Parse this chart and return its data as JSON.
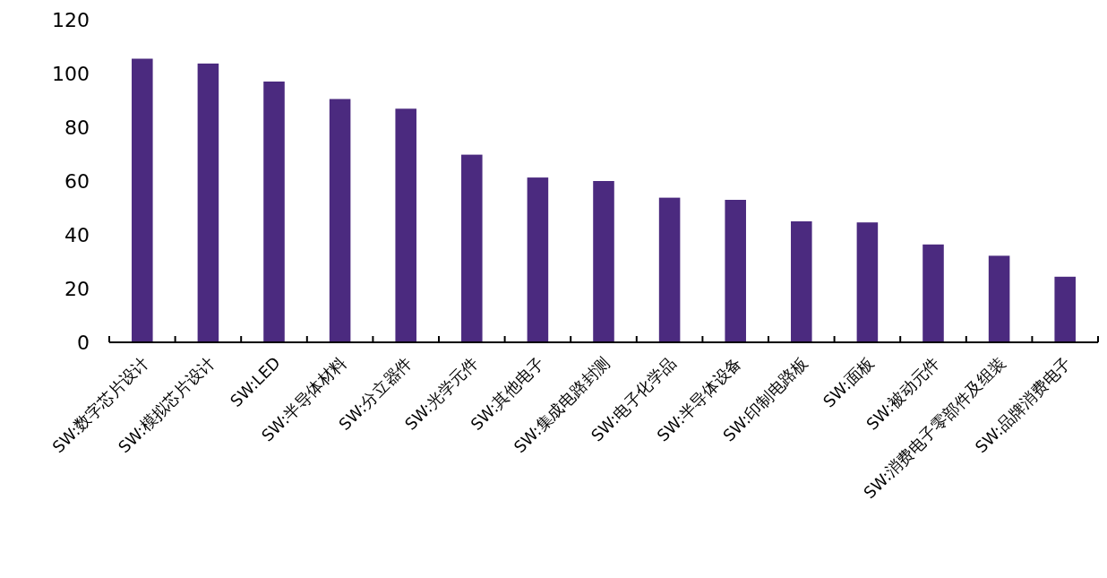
{
  "chart_data": {
    "type": "bar",
    "categories": [
      "SW:数字芯片设计",
      "SW:模拟芯片设计",
      "SW:LED",
      "SW:半导体材料",
      "SW:分立器件",
      "SW:光学元件",
      "SW:其他电子",
      "SW:集成电路封测",
      "SW:电子化学品",
      "SW:半导体设备",
      "SW:印制电路板",
      "SW:面板",
      "SW:被动元件",
      "SW:消费电子零部件及组装",
      "SW:品牌消费电子"
    ],
    "values": [
      105.5,
      103.7,
      97,
      90.5,
      86.9,
      69.8,
      61.3,
      60,
      53.8,
      53,
      45,
      44.6,
      36.4,
      32.2,
      24.4
    ],
    "color": "#4b2a7f",
    "ylim": [
      0,
      120
    ],
    "yticks": [
      0,
      20,
      40,
      60,
      80,
      100,
      120
    ]
  }
}
